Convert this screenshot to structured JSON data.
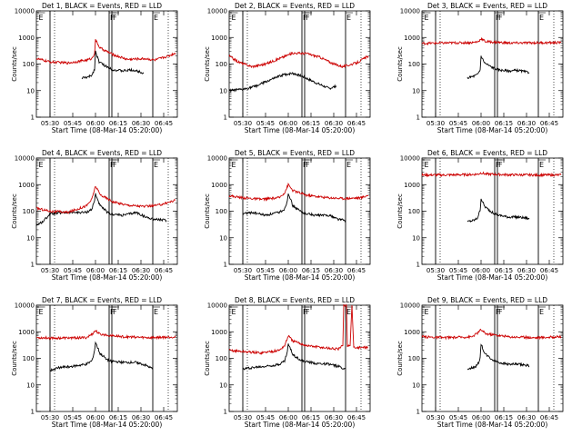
{
  "chart_data": [
    {
      "type": "line",
      "title": "Det 1, BLACK = Events, RED = LLD",
      "xlabel": "Start Time (08-Mar-14 05:20:00)",
      "ylabel": "Counts/sec",
      "yscale": "log",
      "ylim": [
        1,
        10000
      ],
      "yticks": [
        "1",
        "10",
        "100",
        "1000",
        "10000"
      ],
      "xticks": [
        "05:30",
        "05:45",
        "06:00",
        "06:15",
        "06:30",
        "06:45"
      ],
      "markers": [
        "E",
        "F",
        "F",
        "E"
      ],
      "series": [
        {
          "color": "#000000",
          "x_hours": [
            5.85,
            5.92,
            5.96,
            5.99,
            6.0,
            6.04,
            6.12,
            6.2,
            6.3,
            6.4,
            6.5,
            6.53
          ],
          "values": [
            30,
            32,
            38,
            65,
            300,
            120,
            80,
            60,
            55,
            60,
            50,
            45
          ]
        },
        {
          "color": "#cc0000",
          "x_hours": [
            5.35,
            5.5,
            5.7,
            5.9,
            5.96,
            5.99,
            6.0,
            6.05,
            6.2,
            6.35,
            6.55,
            6.65,
            6.8,
            6.88
          ],
          "values": [
            160,
            120,
            110,
            140,
            160,
            260,
            800,
            400,
            220,
            150,
            160,
            140,
            200,
            260
          ]
        }
      ]
    },
    {
      "type": "line",
      "title": "Det 2, BLACK = Events, RED = LLD",
      "xlabel": "Start Time (08-Mar-14 05:20:00)",
      "ylabel": "Counts/sec",
      "yscale": "log",
      "ylim": [
        1,
        10000
      ],
      "yticks": [
        "1",
        "10",
        "100",
        "1000",
        "10000"
      ],
      "xticks": [
        "05:30",
        "05:45",
        "06:00",
        "06:15",
        "06:30",
        "06:45"
      ],
      "markers": [
        "E",
        "F",
        "F",
        "E"
      ],
      "series": [
        {
          "color": "#000000",
          "x_hours": [
            5.35,
            5.5,
            5.65,
            5.8,
            5.95,
            6.05,
            6.15,
            6.3,
            6.45,
            6.53
          ],
          "values": [
            10,
            11,
            15,
            25,
            40,
            45,
            35,
            20,
            12,
            15
          ]
        },
        {
          "color": "#cc0000",
          "x_hours": [
            5.35,
            5.45,
            5.6,
            5.75,
            5.9,
            6.05,
            6.2,
            6.35,
            6.5,
            6.6,
            6.75,
            6.88
          ],
          "values": [
            200,
            120,
            80,
            100,
            160,
            260,
            250,
            180,
            100,
            80,
            110,
            200
          ]
        }
      ]
    },
    {
      "type": "line",
      "title": "Det 3, BLACK = Events, RED = LLD",
      "xlabel": "Start Time (08-Mar-14 05:20:00)",
      "ylabel": "Counts/sec",
      "yscale": "log",
      "ylim": [
        1,
        10000
      ],
      "yticks": [
        "1",
        "10",
        "100",
        "1000",
        "10000"
      ],
      "xticks": [
        "05:30",
        "05:45",
        "06:00",
        "06:15",
        "06:30",
        "06:45"
      ],
      "markers": [
        "E",
        "F",
        "F",
        "E"
      ],
      "series": [
        {
          "color": "#000000",
          "x_hours": [
            5.85,
            5.92,
            5.96,
            5.99,
            6.0,
            6.04,
            6.12,
            6.2,
            6.3,
            6.4,
            6.5,
            6.53
          ],
          "values": [
            30,
            35,
            40,
            60,
            200,
            110,
            75,
            60,
            55,
            58,
            50,
            48
          ]
        },
        {
          "color": "#cc0000",
          "x_hours": [
            5.35,
            5.6,
            5.9,
            5.97,
            6.0,
            6.05,
            6.3,
            6.6,
            6.88
          ],
          "values": [
            600,
            620,
            640,
            700,
            900,
            700,
            620,
            630,
            640
          ]
        }
      ]
    },
    {
      "type": "line",
      "title": "Det 4, BLACK = Events, RED = LLD",
      "xlabel": "Start Time (08-Mar-14 05:20:00)",
      "ylabel": "Counts/sec",
      "yscale": "log",
      "ylim": [
        1,
        10000
      ],
      "yticks": [
        "1",
        "10",
        "100",
        "1000",
        "10000"
      ],
      "xticks": [
        "05:30",
        "05:45",
        "06:00",
        "06:15",
        "06:30",
        "06:45"
      ],
      "markers": [
        "E",
        "F",
        "F",
        "E"
      ],
      "series": [
        {
          "color": "#000000",
          "x_hours": [
            5.35,
            5.42,
            5.5,
            5.7,
            5.9,
            5.96,
            5.99,
            6.0,
            6.05,
            6.15,
            6.3,
            6.45,
            6.55,
            6.65,
            6.78
          ],
          "values": [
            30,
            40,
            80,
            90,
            90,
            120,
            250,
            450,
            160,
            80,
            70,
            90,
            60,
            50,
            45
          ]
        },
        {
          "color": "#cc0000",
          "x_hours": [
            5.35,
            5.5,
            5.7,
            5.9,
            5.96,
            6.0,
            6.05,
            6.2,
            6.35,
            6.55,
            6.7,
            6.88
          ],
          "values": [
            130,
            100,
            90,
            160,
            280,
            900,
            420,
            220,
            170,
            150,
            170,
            260
          ]
        }
      ]
    },
    {
      "type": "line",
      "title": "Det 5, BLACK = Events, RED = LLD",
      "xlabel": "Start Time (08-Mar-14 05:20:00)",
      "ylabel": "Counts/sec",
      "yscale": "log",
      "ylim": [
        1,
        10000
      ],
      "yticks": [
        "1",
        "10",
        "100",
        "1000",
        "10000"
      ],
      "xticks": [
        "05:30",
        "05:45",
        "06:00",
        "06:15",
        "06:30",
        "06:45"
      ],
      "markers": [
        "E",
        "F",
        "F",
        "E"
      ],
      "series": [
        {
          "color": "#000000",
          "x_hours": [
            5.5,
            5.6,
            5.75,
            5.9,
            5.96,
            5.99,
            6.0,
            6.05,
            6.15,
            6.3,
            6.45,
            6.55,
            6.63
          ],
          "values": [
            80,
            90,
            70,
            90,
            120,
            250,
            500,
            160,
            90,
            70,
            70,
            50,
            45
          ]
        },
        {
          "color": "#cc0000",
          "x_hours": [
            5.35,
            5.5,
            5.7,
            5.9,
            5.96,
            6.0,
            6.05,
            6.2,
            6.4,
            6.6,
            6.8,
            6.88
          ],
          "values": [
            380,
            320,
            280,
            320,
            500,
            1000,
            600,
            400,
            330,
            300,
            320,
            400
          ]
        }
      ]
    },
    {
      "type": "line",
      "title": "Det 6, BLACK = Events, RED = LLD",
      "xlabel": "Start Time (08-Mar-14 05:20:00)",
      "ylabel": "Counts/sec",
      "yscale": "log",
      "ylim": [
        1,
        10000
      ],
      "yticks": [
        "1",
        "10",
        "100",
        "1000",
        "10000"
      ],
      "xticks": [
        "05:30",
        "05:45",
        "06:00",
        "06:15",
        "06:30",
        "06:45"
      ],
      "markers": [
        "E",
        "F",
        "F",
        "E"
      ],
      "series": [
        {
          "color": "#000000",
          "x_hours": [
            5.85,
            5.92,
            5.96,
            5.99,
            6.0,
            6.04,
            6.12,
            6.2,
            6.3,
            6.4,
            6.5,
            6.53
          ],
          "values": [
            40,
            45,
            55,
            110,
            300,
            150,
            90,
            70,
            60,
            60,
            55,
            50
          ]
        },
        {
          "color": "#cc0000",
          "x_hours": [
            5.35,
            5.6,
            5.9,
            5.97,
            6.0,
            6.05,
            6.3,
            6.6,
            6.88
          ],
          "values": [
            2300,
            2300,
            2400,
            2500,
            2800,
            2500,
            2350,
            2300,
            2300
          ]
        }
      ]
    },
    {
      "type": "line",
      "title": "Det 7, BLACK = Events, RED = LLD",
      "xlabel": "Start Time (08-Mar-14 05:20:00)",
      "ylabel": "Counts/sec",
      "yscale": "log",
      "ylim": [
        1,
        10000
      ],
      "yticks": [
        "1",
        "10",
        "100",
        "1000",
        "10000"
      ],
      "xticks": [
        "05:30",
        "05:45",
        "06:00",
        "06:15",
        "06:30",
        "06:45"
      ],
      "markers": [
        "E",
        "F",
        "F",
        "E"
      ],
      "series": [
        {
          "color": "#000000",
          "x_hours": [
            5.5,
            5.6,
            5.75,
            5.9,
            5.96,
            5.99,
            6.0,
            6.05,
            6.15,
            6.3,
            6.45,
            6.55,
            6.63
          ],
          "values": [
            35,
            45,
            50,
            60,
            80,
            200,
            400,
            150,
            80,
            70,
            70,
            55,
            40
          ]
        },
        {
          "color": "#cc0000",
          "x_hours": [
            5.35,
            5.6,
            5.9,
            5.96,
            6.0,
            6.05,
            6.3,
            6.6,
            6.88
          ],
          "values": [
            600,
            580,
            600,
            800,
            1100,
            800,
            650,
            600,
            650
          ]
        }
      ]
    },
    {
      "type": "line",
      "title": "Det 8, BLACK = Events, RED = LLD",
      "xlabel": "Start Time (08-Mar-14 05:20:00)",
      "ylabel": "Counts/sec",
      "yscale": "log",
      "ylim": [
        1,
        10000
      ],
      "yticks": [
        "1",
        "10",
        "100",
        "1000",
        "10000"
      ],
      "xticks": [
        "05:30",
        "05:45",
        "06:00",
        "06:15",
        "06:30",
        "06:45"
      ],
      "markers": [
        "E",
        "F",
        "F",
        "E"
      ],
      "series": [
        {
          "color": "#000000",
          "x_hours": [
            5.5,
            5.6,
            5.75,
            5.9,
            5.96,
            5.99,
            6.0,
            6.05,
            6.15,
            6.3,
            6.45,
            6.55,
            6.63
          ],
          "values": [
            40,
            45,
            50,
            60,
            80,
            180,
            350,
            140,
            80,
            65,
            60,
            50,
            40
          ]
        },
        {
          "color": "#cc0000",
          "x_hours": [
            5.35,
            5.5,
            5.7,
            5.9,
            5.96,
            6.0,
            6.05,
            6.2,
            6.4,
            6.55,
            6.6,
            6.61,
            6.64,
            6.65,
            6.68,
            6.7,
            6.72,
            6.88
          ],
          "values": [
            200,
            180,
            160,
            200,
            300,
            700,
            450,
            300,
            250,
            220,
            300,
            10000,
            10000,
            300,
            300,
            10000,
            250,
            260
          ]
        }
      ]
    },
    {
      "type": "line",
      "title": "Det 9, BLACK = Events, RED = LLD",
      "xlabel": "Start Time (08-Mar-14 05:20:00)",
      "ylabel": "Counts/sec",
      "yscale": "log",
      "ylim": [
        1,
        10000
      ],
      "yticks": [
        "1",
        "10",
        "100",
        "1000",
        "10000"
      ],
      "xticks": [
        "05:30",
        "05:45",
        "06:00",
        "06:15",
        "06:30",
        "06:45"
      ],
      "markers": [
        "E",
        "F",
        "F",
        "E"
      ],
      "series": [
        {
          "color": "#000000",
          "x_hours": [
            5.85,
            5.92,
            5.96,
            5.99,
            6.0,
            6.04,
            6.12,
            6.2,
            6.3,
            6.4,
            6.5,
            6.53
          ],
          "values": [
            40,
            45,
            55,
            100,
            350,
            150,
            90,
            70,
            60,
            60,
            55,
            50
          ]
        },
        {
          "color": "#cc0000",
          "x_hours": [
            5.35,
            5.6,
            5.9,
            5.96,
            6.0,
            6.05,
            6.3,
            6.6,
            6.88
          ],
          "values": [
            650,
            600,
            650,
            900,
            1200,
            850,
            650,
            600,
            650
          ]
        }
      ]
    }
  ]
}
